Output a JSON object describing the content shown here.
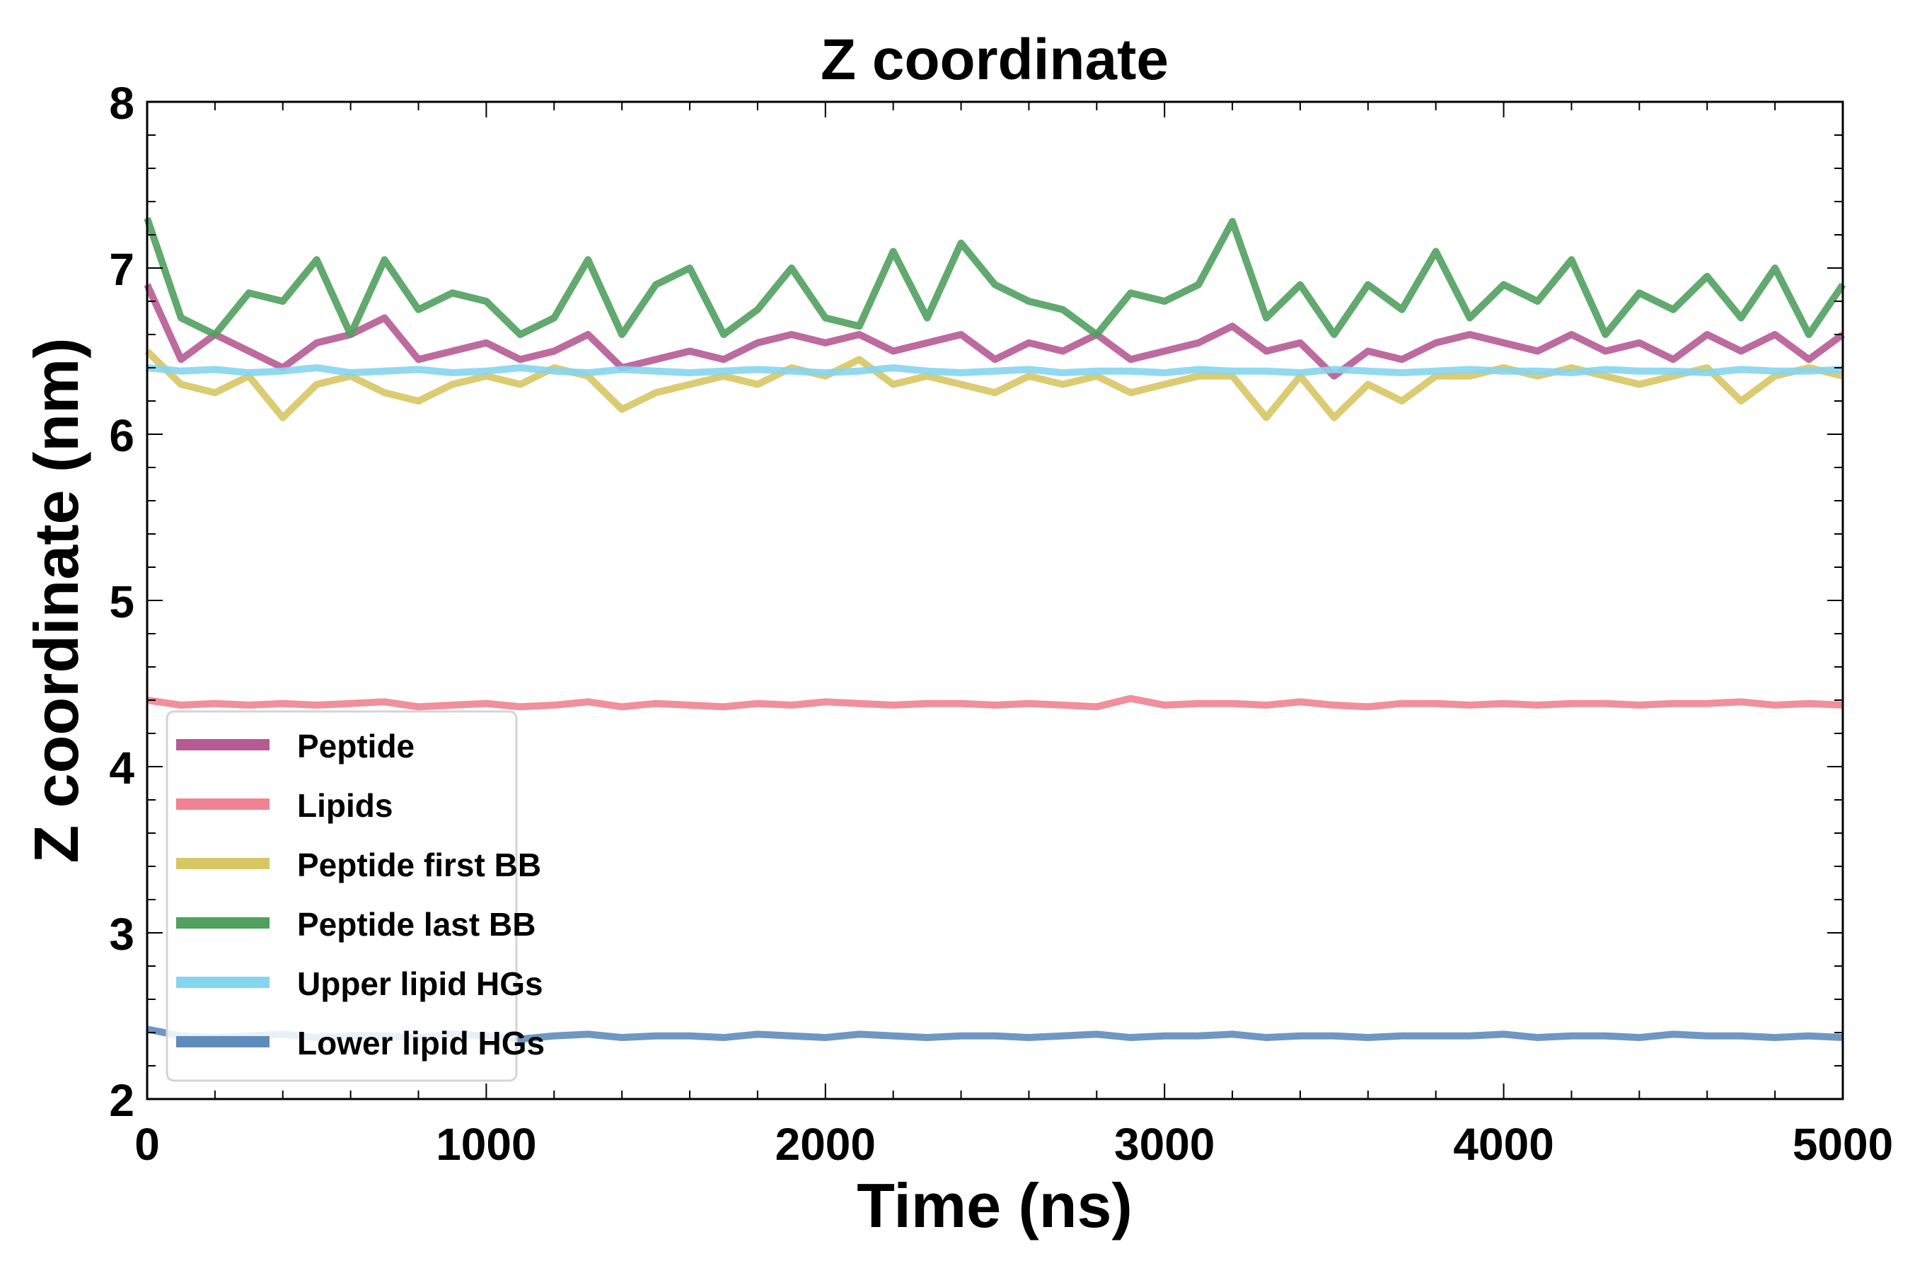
{
  "chart_data": {
    "type": "line",
    "title": "Z coordinate",
    "xlabel": "Time (ns)",
    "ylabel": "Z coordinate (nm)",
    "xlim": [
      0,
      5000
    ],
    "ylim": [
      2,
      8
    ],
    "xticks": [
      0,
      1000,
      2000,
      3000,
      4000,
      5000
    ],
    "yticks": [
      2,
      3,
      4,
      5,
      6,
      7,
      8
    ],
    "grid": false,
    "legend_position": "lower-left",
    "x_step": 100,
    "series": [
      {
        "name": "Peptide",
        "color": "#b65b93",
        "values": [
          6.9,
          6.45,
          6.6,
          6.5,
          6.4,
          6.55,
          6.6,
          6.7,
          6.45,
          6.5,
          6.55,
          6.45,
          6.5,
          6.6,
          6.4,
          6.45,
          6.5,
          6.45,
          6.55,
          6.6,
          6.55,
          6.6,
          6.5,
          6.55,
          6.6,
          6.45,
          6.55,
          6.5,
          6.6,
          6.45,
          6.5,
          6.55,
          6.65,
          6.5,
          6.55,
          6.35,
          6.5,
          6.45,
          6.55,
          6.6,
          6.55,
          6.5,
          6.6,
          6.5,
          6.55,
          6.45,
          6.6,
          6.5,
          6.6,
          6.45,
          6.6
        ]
      },
      {
        "name": "Lipids",
        "color": "#ef8391",
        "values": [
          4.4,
          4.37,
          4.38,
          4.37,
          4.38,
          4.37,
          4.38,
          4.39,
          4.36,
          4.37,
          4.38,
          4.36,
          4.37,
          4.39,
          4.36,
          4.38,
          4.37,
          4.36,
          4.38,
          4.37,
          4.39,
          4.38,
          4.37,
          4.38,
          4.38,
          4.37,
          4.38,
          4.37,
          4.36,
          4.41,
          4.37,
          4.38,
          4.38,
          4.37,
          4.39,
          4.37,
          4.36,
          4.38,
          4.38,
          4.37,
          4.38,
          4.37,
          4.38,
          4.38,
          4.37,
          4.38,
          4.38,
          4.39,
          4.37,
          4.38,
          4.37
        ]
      },
      {
        "name": "Peptide first BB",
        "color": "#d7c764",
        "values": [
          6.5,
          6.3,
          6.25,
          6.35,
          6.1,
          6.3,
          6.35,
          6.25,
          6.2,
          6.3,
          6.35,
          6.3,
          6.4,
          6.35,
          6.15,
          6.25,
          6.3,
          6.35,
          6.3,
          6.4,
          6.35,
          6.45,
          6.3,
          6.35,
          6.3,
          6.25,
          6.35,
          6.3,
          6.35,
          6.25,
          6.3,
          6.35,
          6.35,
          6.1,
          6.35,
          6.1,
          6.3,
          6.2,
          6.35,
          6.35,
          6.4,
          6.35,
          6.4,
          6.35,
          6.3,
          6.35,
          6.4,
          6.2,
          6.35,
          6.4,
          6.35
        ]
      },
      {
        "name": "Peptide last BB",
        "color": "#50a05e",
        "values": [
          7.3,
          6.7,
          6.6,
          6.85,
          6.8,
          7.05,
          6.6,
          7.05,
          6.75,
          6.85,
          6.8,
          6.6,
          6.7,
          7.05,
          6.6,
          6.9,
          7.0,
          6.6,
          6.75,
          7.0,
          6.7,
          6.65,
          7.1,
          6.7,
          7.15,
          6.9,
          6.8,
          6.75,
          6.6,
          6.85,
          6.8,
          6.9,
          7.28,
          6.7,
          6.9,
          6.6,
          6.9,
          6.75,
          7.1,
          6.7,
          6.9,
          6.8,
          7.05,
          6.6,
          6.85,
          6.75,
          6.95,
          6.7,
          7.0,
          6.6,
          6.9
        ]
      },
      {
        "name": "Upper lipid HGs",
        "color": "#85d5ef",
        "values": [
          6.4,
          6.38,
          6.39,
          6.37,
          6.38,
          6.4,
          6.37,
          6.38,
          6.39,
          6.37,
          6.38,
          6.4,
          6.38,
          6.37,
          6.39,
          6.38,
          6.37,
          6.38,
          6.39,
          6.38,
          6.37,
          6.38,
          6.4,
          6.38,
          6.37,
          6.38,
          6.39,
          6.37,
          6.38,
          6.38,
          6.37,
          6.39,
          6.38,
          6.38,
          6.37,
          6.39,
          6.38,
          6.37,
          6.38,
          6.39,
          6.38,
          6.38,
          6.37,
          6.39,
          6.38,
          6.38,
          6.37,
          6.39,
          6.38,
          6.38,
          6.39
        ]
      },
      {
        "name": "Lower lipid HGs",
        "color": "#5f8cbb",
        "values": [
          2.42,
          2.38,
          2.37,
          2.38,
          2.39,
          2.37,
          2.38,
          2.38,
          2.37,
          2.39,
          2.38,
          2.36,
          2.38,
          2.39,
          2.37,
          2.38,
          2.38,
          2.37,
          2.39,
          2.38,
          2.37,
          2.39,
          2.38,
          2.37,
          2.38,
          2.38,
          2.37,
          2.38,
          2.39,
          2.37,
          2.38,
          2.38,
          2.39,
          2.37,
          2.38,
          2.38,
          2.37,
          2.38,
          2.38,
          2.38,
          2.39,
          2.37,
          2.38,
          2.38,
          2.37,
          2.39,
          2.38,
          2.38,
          2.37,
          2.38,
          2.37
        ]
      }
    ]
  }
}
